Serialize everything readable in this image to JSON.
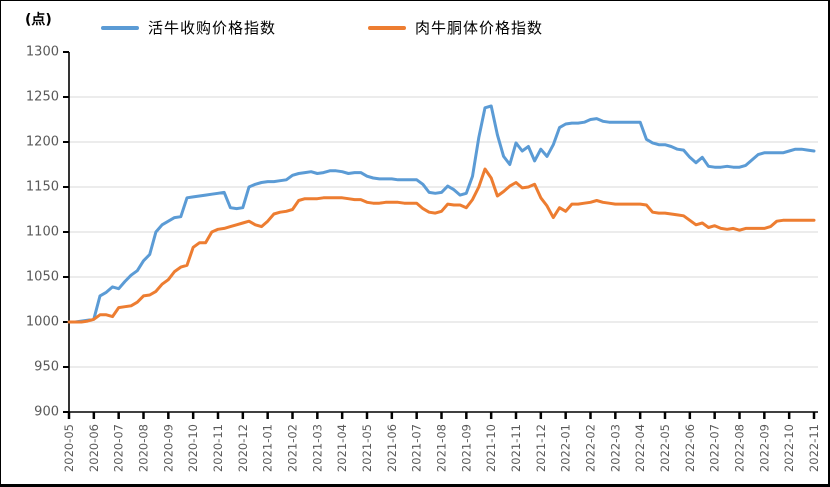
{
  "chart_data": {
    "type": "line",
    "unit_label": "(点)",
    "legend_position": "top",
    "grid": "horizontal",
    "grid_color": "#D9D9D9",
    "axis_color": "#000000",
    "tick_label_color": "#595959",
    "ylim": [
      900,
      1300
    ],
    "ytick_step": 50,
    "points_per_month": 4,
    "x_tick_labels": [
      "2020-05",
      "2020-06",
      "2020-07",
      "2020-08",
      "2020-09",
      "2020-10",
      "2020-11",
      "2020-12",
      "2021-01",
      "2021-02",
      "2021-03",
      "2021-04",
      "2021-05",
      "2021-06",
      "2021-07",
      "2021-08",
      "2021-09",
      "2021-10",
      "2021-11",
      "2021-12",
      "2022-01",
      "2022-02",
      "2022-03",
      "2022-04",
      "2022-05",
      "2022-06",
      "2022-07",
      "2022-08",
      "2022-09",
      "2022-10",
      "2022-11"
    ],
    "series": [
      {
        "name": "活牛收购价格指数",
        "color": "#5B9BD5",
        "values": [
          1000,
          1000,
          1001,
          1002,
          1003,
          1029,
          1033,
          1039,
          1037,
          1045,
          1052,
          1057,
          1068,
          1075,
          1100,
          1108,
          1112,
          1116,
          1117,
          1138,
          1139,
          1140,
          1141,
          1142,
          1143,
          1144,
          1127,
          1126,
          1127,
          1150,
          1153,
          1155,
          1156,
          1156,
          1157,
          1158,
          1163,
          1165,
          1166,
          1167,
          1165,
          1166,
          1168,
          1168,
          1167,
          1165,
          1166,
          1166,
          1162,
          1160,
          1159,
          1159,
          1159,
          1158,
          1158,
          1158,
          1158,
          1153,
          1144,
          1143,
          1144,
          1151,
          1147,
          1141,
          1143,
          1162,
          1205,
          1238,
          1240,
          1208,
          1184,
          1175,
          1199,
          1190,
          1195,
          1179,
          1192,
          1184,
          1197,
          1216,
          1220,
          1221,
          1221,
          1222,
          1225,
          1226,
          1223,
          1222,
          1222,
          1222,
          1222,
          1222,
          1222,
          1203,
          1199,
          1197,
          1197,
          1195,
          1192,
          1191,
          1183,
          1177,
          1183,
          1173,
          1172,
          1172,
          1173,
          1172,
          1172,
          1174,
          1180,
          1186,
          1188,
          1188,
          1188,
          1188,
          1190,
          1192,
          1192,
          1191,
          1190
        ]
      },
      {
        "name": "肉牛胴体价格指数",
        "color": "#ED7D31",
        "values": [
          1000,
          1000,
          1000,
          1001,
          1003,
          1008,
          1008,
          1006,
          1016,
          1017,
          1018,
          1022,
          1029,
          1030,
          1034,
          1042,
          1047,
          1056,
          1061,
          1063,
          1083,
          1088,
          1088,
          1100,
          1103,
          1104,
          1106,
          1108,
          1110,
          1112,
          1108,
          1106,
          1112,
          1120,
          1122,
          1123,
          1125,
          1135,
          1137,
          1137,
          1137,
          1138,
          1138,
          1138,
          1138,
          1137,
          1136,
          1136,
          1133,
          1132,
          1132,
          1133,
          1133,
          1133,
          1132,
          1132,
          1132,
          1126,
          1122,
          1121,
          1123,
          1131,
          1130,
          1130,
          1127,
          1136,
          1150,
          1170,
          1160,
          1140,
          1145,
          1151,
          1155,
          1149,
          1150,
          1153,
          1138,
          1129,
          1116,
          1127,
          1123,
          1131,
          1131,
          1132,
          1133,
          1135,
          1133,
          1132,
          1131,
          1131,
          1131,
          1131,
          1131,
          1130,
          1122,
          1121,
          1121,
          1120,
          1119,
          1118,
          1113,
          1108,
          1110,
          1105,
          1107,
          1104,
          1103,
          1104,
          1102,
          1104,
          1104,
          1104,
          1104,
          1106,
          1112,
          1113,
          1113,
          1113,
          1113,
          1113,
          1113
        ]
      }
    ]
  }
}
